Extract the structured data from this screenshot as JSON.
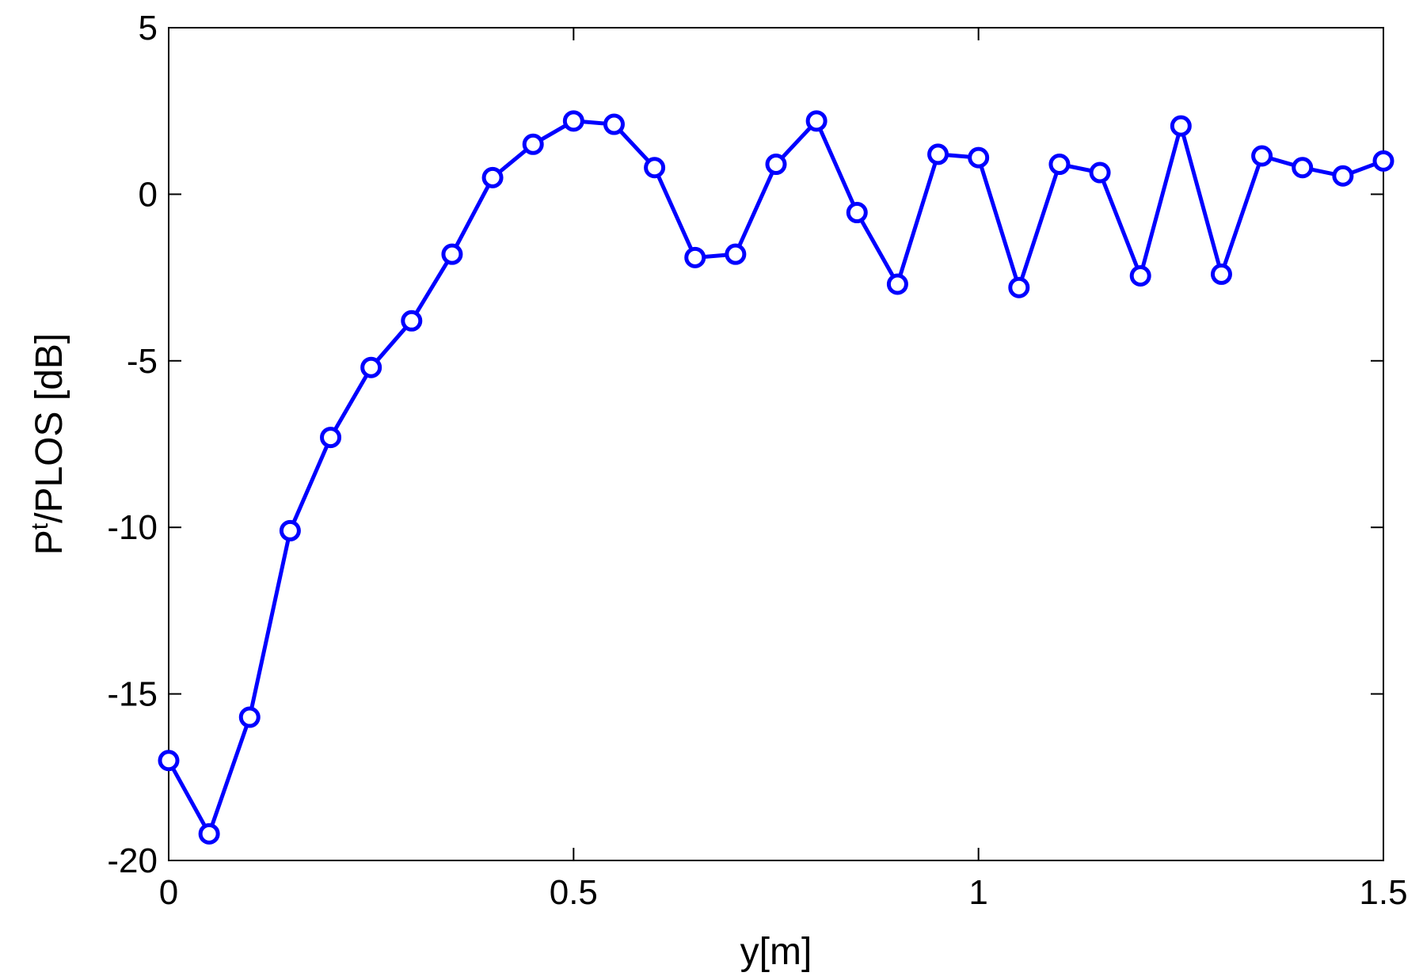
{
  "chart_data": {
    "type": "line",
    "title": "",
    "xlabel": "y[m]",
    "ylabel": {
      "main": "P",
      "superscript": "t",
      "rest": "/PLOS [dB]"
    },
    "xlim": [
      0,
      1.5
    ],
    "ylim": [
      -20,
      5
    ],
    "xticks": [
      0,
      0.5,
      1,
      1.5
    ],
    "xtick_labels": [
      "0",
      "0.5",
      "1",
      "1.5"
    ],
    "yticks": [
      5,
      0,
      -5,
      -10,
      -15,
      -20
    ],
    "ytick_labels": [
      "5",
      "0",
      "-5",
      "-10",
      "-15",
      "-20"
    ],
    "grid": false,
    "series": [
      {
        "color": "#0000ff",
        "marker": "circle",
        "x": [
          0,
          0.05,
          0.1,
          0.15,
          0.2,
          0.25,
          0.3,
          0.35,
          0.4,
          0.45,
          0.5,
          0.55,
          0.6,
          0.65,
          0.7,
          0.75,
          0.8,
          0.85,
          0.9,
          0.95,
          1.0,
          1.05,
          1.1,
          1.15,
          1.2,
          1.25,
          1.3,
          1.35,
          1.4,
          1.45,
          1.5
        ],
        "y": [
          -17.0,
          -19.2,
          -15.7,
          -10.1,
          -7.3,
          -5.2,
          -3.8,
          -1.8,
          0.5,
          1.5,
          2.2,
          2.1,
          0.8,
          -1.9,
          -1.8,
          0.9,
          2.2,
          -0.55,
          -2.7,
          1.2,
          1.1,
          -2.8,
          0.9,
          0.65,
          -2.45,
          2.05,
          -2.4,
          1.15,
          0.8,
          0.55,
          1.0
        ]
      }
    ]
  }
}
